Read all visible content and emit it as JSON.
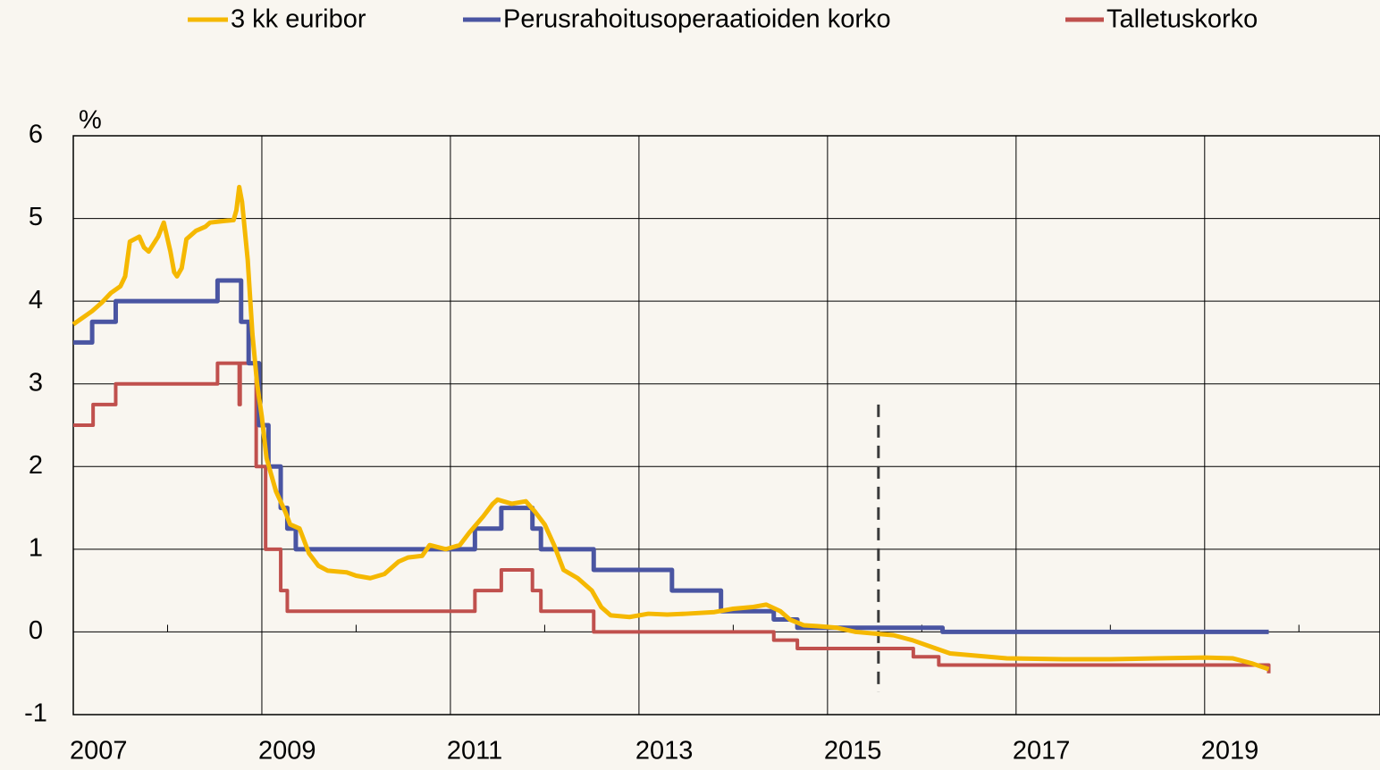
{
  "chart_data": {
    "type": "line",
    "y_label": "%",
    "xlim": [
      2007,
      2020.86
    ],
    "ylim": [
      -1,
      6
    ],
    "yticks": [
      -1,
      0,
      1,
      2,
      3,
      4,
      5,
      6
    ],
    "xticks": [
      2007,
      2009,
      2011,
      2013,
      2015,
      2017,
      2019
    ],
    "xminor_ticks": [
      2008,
      2010,
      2012,
      2014,
      2016,
      2018,
      2020
    ],
    "grid": true,
    "legend": "top",
    "reference_line": {
      "x": 2015.54,
      "ymin": -0.73,
      "ymax": 2.75,
      "color": "#3a3a3a"
    },
    "series": [
      {
        "name": "3 kk euribor",
        "color": "#f5b800",
        "step": false,
        "x": [
          2007.0,
          2007.1,
          2007.2,
          2007.3,
          2007.4,
          2007.5,
          2007.55,
          2007.6,
          2007.65,
          2007.7,
          2007.75,
          2007.8,
          2007.9,
          2007.96,
          2008.03,
          2008.07,
          2008.1,
          2008.15,
          2008.2,
          2008.3,
          2008.4,
          2008.45,
          2008.6,
          2008.7,
          2008.73,
          2008.76,
          2008.79,
          2008.85,
          2008.9,
          2008.95,
          2009.0,
          2009.05,
          2009.15,
          2009.25,
          2009.3,
          2009.4,
          2009.5,
          2009.6,
          2009.7,
          2009.9,
          2010.0,
          2010.15,
          2010.3,
          2010.45,
          2010.55,
          2010.7,
          2010.78,
          2010.95,
          2011.1,
          2011.2,
          2011.35,
          2011.45,
          2011.5,
          2011.65,
          2011.8,
          2011.9,
          2012.0,
          2012.1,
          2012.2,
          2012.35,
          2012.5,
          2012.6,
          2012.7,
          2012.9,
          2013.1,
          2013.3,
          2013.5,
          2013.8,
          2014.0,
          2014.2,
          2014.35,
          2014.5,
          2014.6,
          2014.75,
          2014.9,
          2015.1,
          2015.3,
          2015.5,
          2015.7,
          2015.9,
          2016.1,
          2016.3,
          2016.6,
          2016.9,
          2017.5,
          2018.0,
          2018.5,
          2019.0,
          2019.3,
          2019.5,
          2019.6,
          2019.68
        ],
        "values": [
          3.72,
          3.8,
          3.88,
          3.98,
          4.1,
          4.18,
          4.3,
          4.72,
          4.75,
          4.78,
          4.65,
          4.6,
          4.78,
          4.95,
          4.6,
          4.35,
          4.3,
          4.4,
          4.75,
          4.85,
          4.9,
          4.95,
          4.97,
          4.98,
          5.1,
          5.38,
          5.2,
          4.5,
          3.6,
          3.0,
          2.6,
          2.1,
          1.7,
          1.45,
          1.3,
          1.25,
          0.95,
          0.8,
          0.74,
          0.72,
          0.68,
          0.65,
          0.7,
          0.85,
          0.9,
          0.92,
          1.05,
          1.0,
          1.05,
          1.2,
          1.4,
          1.55,
          1.6,
          1.55,
          1.58,
          1.45,
          1.3,
          1.05,
          0.75,
          0.65,
          0.5,
          0.3,
          0.2,
          0.18,
          0.22,
          0.21,
          0.22,
          0.24,
          0.28,
          0.3,
          0.33,
          0.25,
          0.15,
          0.08,
          0.07,
          0.05,
          0.0,
          -0.02,
          -0.04,
          -0.1,
          -0.18,
          -0.26,
          -0.29,
          -0.32,
          -0.33,
          -0.33,
          -0.32,
          -0.31,
          -0.32,
          -0.38,
          -0.42,
          -0.45
        ]
      },
      {
        "name": "Perusrahoitusoperaatioiden korko",
        "color": "#4a55a2",
        "step": true,
        "x": [
          2007.0,
          2007.2,
          2007.45,
          2008.53,
          2008.78,
          2008.86,
          2008.97,
          2009.07,
          2009.2,
          2009.27,
          2009.36,
          2011.26,
          2011.54,
          2011.87,
          2011.96,
          2012.52,
          2013.35,
          2013.87,
          2014.43,
          2014.68,
          2016.22,
          2019.68
        ],
        "values": [
          3.5,
          3.75,
          4.0,
          4.25,
          3.75,
          3.25,
          2.5,
          2.0,
          1.5,
          1.25,
          1.0,
          1.25,
          1.5,
          1.25,
          1.0,
          0.75,
          0.5,
          0.25,
          0.15,
          0.05,
          0.0,
          0.0
        ]
      },
      {
        "name": "Talletuskorko",
        "color": "#c0504d",
        "step": true,
        "x": [
          2007.0,
          2007.21,
          2007.45,
          2008.53,
          2008.76,
          2008.77,
          2008.94,
          2009.04,
          2009.2,
          2009.27,
          2011.26,
          2011.54,
          2011.87,
          2011.96,
          2012.52,
          2014.43,
          2014.68,
          2015.91,
          2016.18,
          2019.68
        ],
        "values": [
          2.5,
          2.75,
          3.0,
          3.25,
          2.75,
          3.25,
          2.0,
          1.0,
          0.5,
          0.25,
          0.5,
          0.75,
          0.5,
          0.25,
          0.0,
          -0.1,
          -0.2,
          -0.3,
          -0.4,
          -0.5
        ]
      }
    ]
  }
}
